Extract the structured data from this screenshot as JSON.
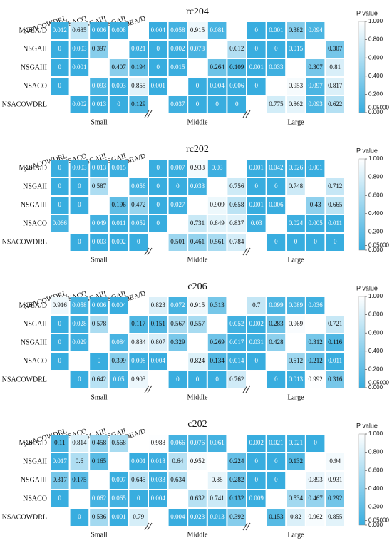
{
  "chart_data": [
    {
      "type": "heatmap",
      "title": "rc204",
      "rows": [
        "MOEA/D",
        "NSGAII",
        "NSGAIII",
        "NSACO",
        "NSACOWDRL"
      ],
      "columns": [
        "NSACOWDRL",
        "NSACO",
        "NSGAIII",
        "NSGAII",
        "MOEA/D"
      ],
      "groups": [
        "Small",
        "Middle",
        "Large"
      ],
      "values": [
        [
          0.012,
          0.685,
          0.006,
          0.008,
          null,
          0.004,
          0.058,
          0.915,
          0.081,
          null,
          0,
          0.001,
          0.382,
          0.094,
          null
        ],
        [
          0,
          0.003,
          0.397,
          null,
          0.021,
          0,
          0.002,
          0.078,
          null,
          0.612,
          0,
          0,
          0.015,
          null,
          0.307
        ],
        [
          0,
          0.001,
          null,
          0.407,
          0.194,
          0,
          0.015,
          null,
          0.264,
          0.109,
          0.001,
          0.033,
          null,
          0.307,
          0.81
        ],
        [
          0,
          null,
          0.093,
          0.003,
          0.855,
          0.001,
          null,
          0,
          0.004,
          0.006,
          0,
          null,
          0.953,
          0.097,
          0.817
        ],
        [
          null,
          0.002,
          0.013,
          0,
          0.129,
          null,
          0.037,
          0,
          0,
          0,
          null,
          0.775,
          0.862,
          0.093,
          0.622
        ]
      ],
      "colorbar": {
        "label": "P value",
        "lim": [
          0,
          1
        ],
        "colors": [
          "#38addf",
          "#ffffff"
        ],
        "ticks": [
          {
            "value": 1,
            "label": "1.000"
          },
          {
            "value": 0.8,
            "label": "0.800"
          },
          {
            "value": 0.6,
            "label": "0.600"
          },
          {
            "value": 0.4,
            "label": "0.400"
          },
          {
            "value": 0.2,
            "label": "0.200"
          },
          {
            "value": 0.05,
            "label": "0.05000"
          },
          {
            "value": 0,
            "label": "0.000"
          }
        ]
      }
    },
    {
      "type": "heatmap",
      "title": "rc202",
      "rows": [
        "MOEA/D",
        "NSGAII",
        "NSGAIII",
        "NSACO",
        "NSACOWDRL"
      ],
      "columns": [
        "NSACOWDRL",
        "NSACO",
        "NSGAIII",
        "NSGAII",
        "MOEA/D"
      ],
      "groups": [
        "Small",
        "Middle",
        "Large"
      ],
      "values": [
        [
          0,
          0.003,
          0.013,
          0.015,
          null,
          0,
          0.007,
          0.933,
          0.03,
          null,
          0.001,
          0.042,
          0.026,
          0.001,
          null
        ],
        [
          0,
          0,
          0.587,
          null,
          0.056,
          0,
          0,
          0.033,
          null,
          0.756,
          0,
          0,
          0.748,
          null,
          0.712
        ],
        [
          0,
          0,
          null,
          0.196,
          0.472,
          0,
          0.027,
          null,
          0.909,
          0.658,
          0.001,
          0.006,
          null,
          0.43,
          0.665
        ],
        [
          0.066,
          null,
          0.049,
          0.011,
          0.052,
          0,
          null,
          0.731,
          0.849,
          0.837,
          0.03,
          null,
          0.024,
          0.005,
          0.011
        ],
        [
          null,
          0,
          0.003,
          0.002,
          0,
          null,
          0.501,
          0.461,
          0.561,
          0.784,
          null,
          0,
          0,
          0,
          0
        ]
      ],
      "colorbar": {
        "label": "P value",
        "lim": [
          0,
          1
        ],
        "colors": [
          "#38addf",
          "#ffffff"
        ],
        "ticks": [
          {
            "value": 1,
            "label": "1.000"
          },
          {
            "value": 0.8,
            "label": "0.800"
          },
          {
            "value": 0.6,
            "label": "0.600"
          },
          {
            "value": 0.4,
            "label": "0.400"
          },
          {
            "value": 0.2,
            "label": "0.200"
          },
          {
            "value": 0.05,
            "label": "0.05000"
          },
          {
            "value": 0,
            "label": "0.000"
          }
        ]
      }
    },
    {
      "type": "heatmap",
      "title": "c206",
      "rows": [
        "MOEA/D",
        "NSGAII",
        "NSGAIII",
        "NSACO",
        "NSACOWDRL"
      ],
      "columns": [
        "NSACOWDRL",
        "NSACO",
        "NSGAIII",
        "NSGAII",
        "MOEA/D"
      ],
      "groups": [
        "Small",
        "Middle",
        "Large"
      ],
      "values": [
        [
          0.916,
          0.058,
          0.006,
          0.004,
          null,
          0.823,
          0.072,
          0.915,
          0.313,
          null,
          0.7,
          0.099,
          0.089,
          0.036,
          null
        ],
        [
          0,
          0.028,
          0.578,
          null,
          0.117,
          0.151,
          0.567,
          0.557,
          null,
          0.052,
          0.002,
          0.283,
          0.969,
          null,
          0.721
        ],
        [
          0,
          0.029,
          null,
          0.084,
          0.884,
          0.807,
          0.329,
          null,
          0.269,
          0.017,
          0.031,
          0.428,
          null,
          0.312,
          0.116
        ],
        [
          0,
          null,
          0,
          0.399,
          0.008,
          0.004,
          null,
          0.824,
          0.134,
          0.014,
          0,
          null,
          0.512,
          0.212,
          0.011
        ],
        [
          null,
          0,
          0.642,
          0.05,
          0.903,
          null,
          0,
          0,
          0,
          0.762,
          null,
          0,
          0.013,
          0.992,
          0.316
        ]
      ],
      "colorbar": {
        "label": "P value",
        "lim": [
          0,
          1
        ],
        "colors": [
          "#38addf",
          "#ffffff"
        ],
        "ticks": [
          {
            "value": 1,
            "label": "1.000"
          },
          {
            "value": 0.8,
            "label": "0.800"
          },
          {
            "value": 0.6,
            "label": "0.600"
          },
          {
            "value": 0.4,
            "label": "0.400"
          },
          {
            "value": 0.2,
            "label": "0.200"
          },
          {
            "value": 0.05,
            "label": "0.05000"
          },
          {
            "value": 0,
            "label": "0.000"
          }
        ]
      }
    },
    {
      "type": "heatmap",
      "title": "c202",
      "rows": [
        "MOEA/D",
        "NSGAII",
        "NSGAIII",
        "NSACO",
        "NSACOWDRL"
      ],
      "columns": [
        "NSACOWDRL",
        "NSACO",
        "NSGAIII",
        "NSGAII",
        "MOEA/D"
      ],
      "groups": [
        "Small",
        "Middle",
        "Large"
      ],
      "values": [
        [
          0.11,
          0.814,
          0.458,
          0.568,
          null,
          0.988,
          0.066,
          0.076,
          0.061,
          null,
          0.002,
          0.021,
          0.021,
          0,
          null
        ],
        [
          0.017,
          0.6,
          0.165,
          null,
          0.001,
          0.018,
          0.64,
          0.952,
          null,
          0.224,
          0,
          0,
          0.132,
          null,
          0.94
        ],
        [
          0.317,
          0.175,
          null,
          0.007,
          0.645,
          0.033,
          0.634,
          null,
          0.88,
          0.282,
          0,
          0,
          null,
          0.893,
          0.931
        ],
        [
          0,
          null,
          0.062,
          0.065,
          0,
          0.004,
          null,
          0.632,
          0.741,
          0.132,
          0.009,
          null,
          0.534,
          0.467,
          0.292
        ],
        [
          null,
          0,
          0.536,
          0.001,
          0.79,
          null,
          0.004,
          0.023,
          0.013,
          0.392,
          null,
          0.153,
          0.82,
          0.962,
          0.855
        ]
      ],
      "colorbar": {
        "label": "P value",
        "lim": [
          0,
          1
        ],
        "colors": [
          "#38addf",
          "#ffffff"
        ],
        "ticks": [
          {
            "value": 1,
            "label": "1.000"
          },
          {
            "value": 0.8,
            "label": "0.800"
          },
          {
            "value": 0.6,
            "label": "0.600"
          },
          {
            "value": 0.4,
            "label": "0.400"
          },
          {
            "value": 0.2,
            "label": "0.200"
          },
          {
            "value": 0.05,
            "label": "0.05000"
          },
          {
            "value": 0,
            "label": "0.000"
          }
        ]
      }
    }
  ]
}
